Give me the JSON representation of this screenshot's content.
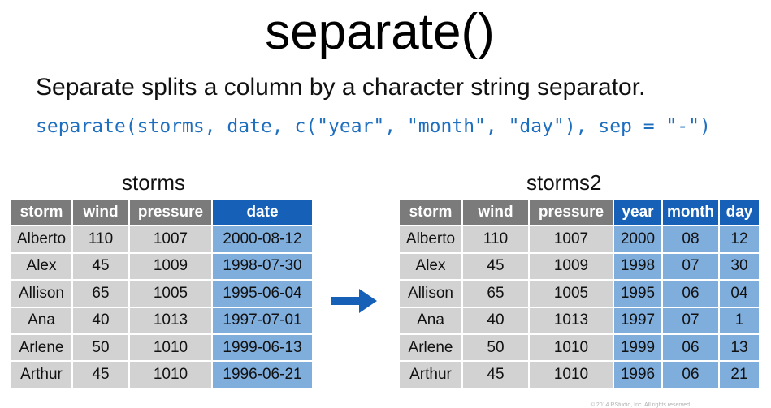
{
  "title": "separate()",
  "subtitle": "Separate splits a column by a character string separator.",
  "code": "separate(storms, date, c(\"year\", \"month\", \"day\"), sep = \"-\")",
  "left_table": {
    "name": "storms",
    "headers": [
      "storm",
      "wind",
      "pressure",
      "date"
    ],
    "rows": [
      [
        "Alberto",
        "110",
        "1007",
        "2000-08-12"
      ],
      [
        "Alex",
        "45",
        "1009",
        "1998-07-30"
      ],
      [
        "Allison",
        "65",
        "1005",
        "1995-06-04"
      ],
      [
        "Ana",
        "40",
        "1013",
        "1997-07-01"
      ],
      [
        "Arlene",
        "50",
        "1010",
        "1999-06-13"
      ],
      [
        "Arthur",
        "45",
        "1010",
        "1996-06-21"
      ]
    ]
  },
  "right_table": {
    "name": "storms2",
    "headers": [
      "storm",
      "wind",
      "pressure",
      "year",
      "month",
      "day"
    ],
    "rows": [
      [
        "Alberto",
        "110",
        "1007",
        "2000",
        "08",
        "12"
      ],
      [
        "Alex",
        "45",
        "1009",
        "1998",
        "07",
        "30"
      ],
      [
        "Allison",
        "65",
        "1005",
        "1995",
        "06",
        "04"
      ],
      [
        "Ana",
        "40",
        "1013",
        "1997",
        "07",
        "1"
      ],
      [
        "Arlene",
        "50",
        "1010",
        "1999",
        "06",
        "13"
      ],
      [
        "Arthur",
        "45",
        "1010",
        "1996",
        "06",
        "21"
      ]
    ]
  },
  "colors": {
    "header_gray": "#7b7b7b",
    "header_blue": "#1760b8",
    "cell_gray": "#d2d2d2",
    "cell_blue": "#7faedd",
    "code_blue": "#1f6fbf"
  },
  "icons": {
    "arrow": "right-arrow-icon"
  },
  "copyright": "© 2014 RStudio, Inc. All rights reserved."
}
